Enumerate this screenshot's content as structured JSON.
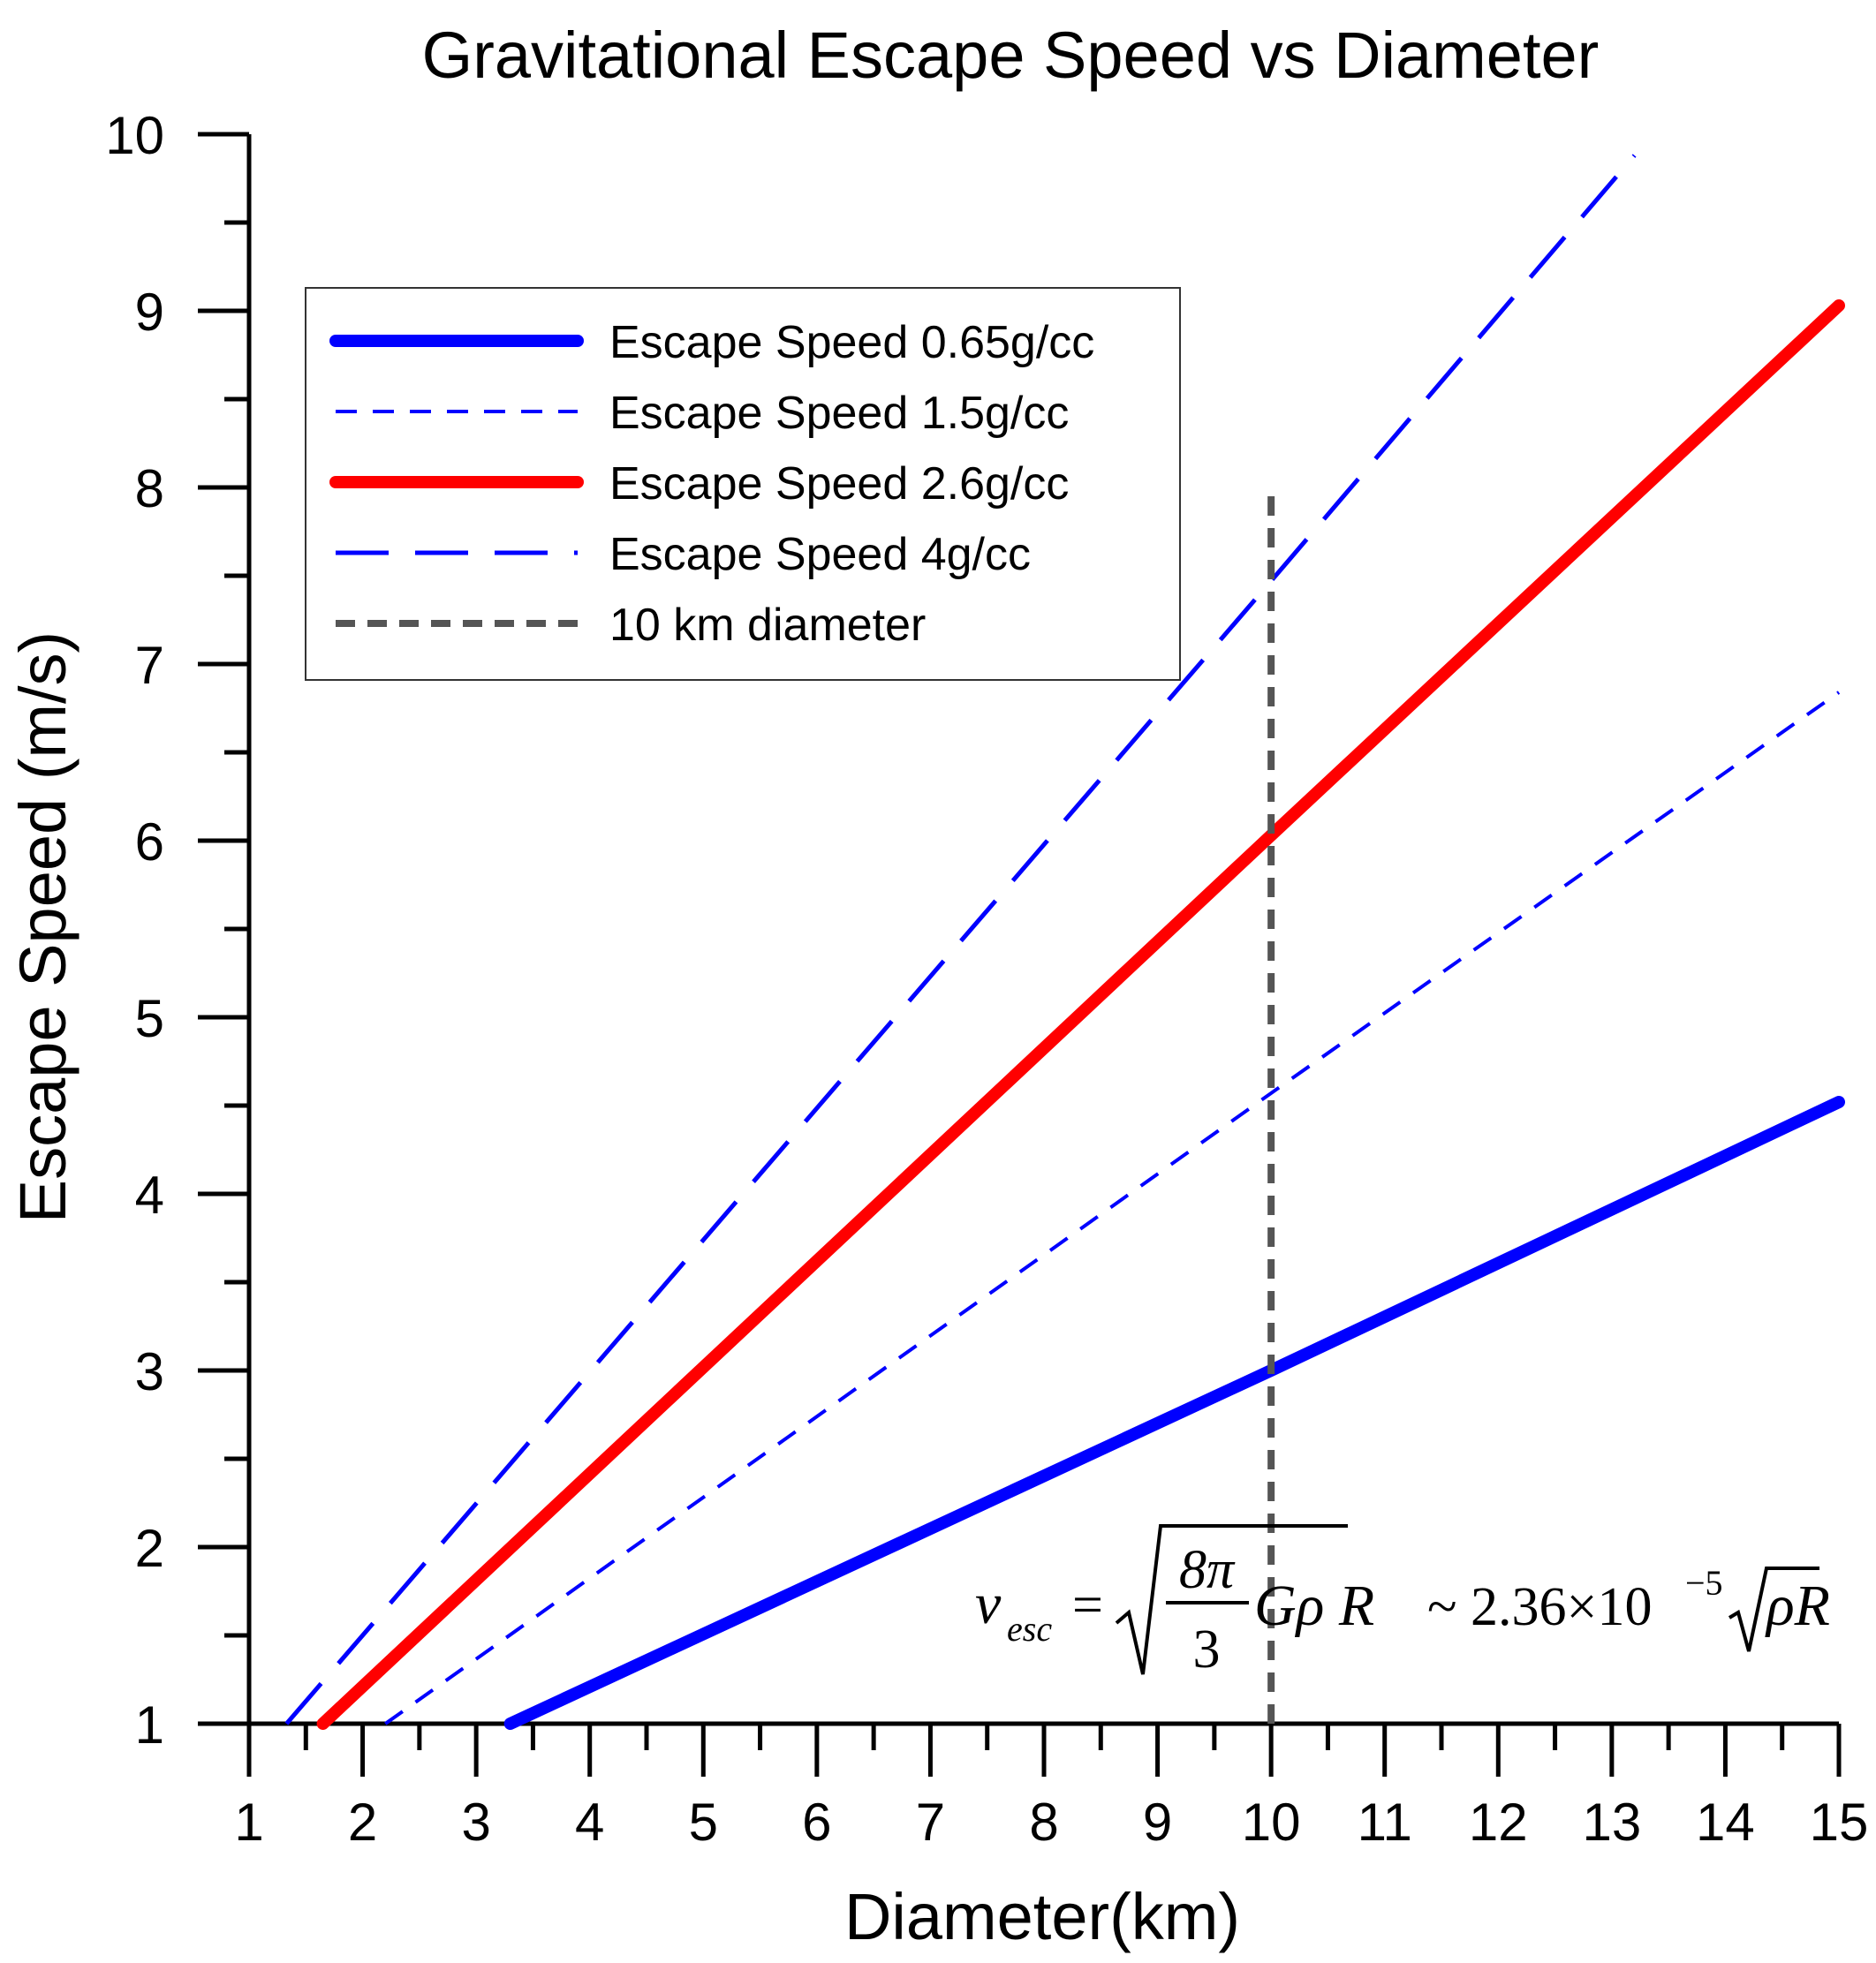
{
  "chart_data": {
    "type": "line",
    "title": "Gravitational Escape Speed vs Diameter",
    "xlabel": "Diameter(km)",
    "ylabel": "Escape Speed (m/s)",
    "xlim": [
      1,
      15
    ],
    "ylim": [
      1,
      10
    ],
    "xticks": [
      "1",
      "2",
      "3",
      "4",
      "5",
      "6",
      "7",
      "8",
      "9",
      "10",
      "11",
      "12",
      "13",
      "14",
      "15"
    ],
    "yticks": [
      "1",
      "2",
      "3",
      "4",
      "5",
      "6",
      "7",
      "8",
      "9",
      "10"
    ],
    "grid": false,
    "legend_position": "top-left",
    "series": [
      {
        "name": "Escape Speed 0.65g/cc",
        "color": "#0000ff",
        "style": "solid-thick",
        "x": [
          3.3,
          10,
          15
        ],
        "y": [
          1.0,
          3.0,
          4.52
        ]
      },
      {
        "name": "Escape Speed 1.5g/cc",
        "color": "#0000ff",
        "style": "short-dash",
        "x": [
          2.2,
          10,
          15
        ],
        "y": [
          1.0,
          4.57,
          6.84
        ]
      },
      {
        "name": "Escape Speed 2.6g/cc",
        "color": "#ff0000",
        "style": "solid-thick",
        "x": [
          1.65,
          10,
          15
        ],
        "y": [
          1.0,
          6.03,
          9.03
        ]
      },
      {
        "name": "Escape Speed 4g/cc",
        "color": "#0000ff",
        "style": "long-dash",
        "x": [
          1.33,
          10,
          13.2
        ],
        "y": [
          1.0,
          7.47,
          9.88
        ]
      }
    ],
    "reference_line": {
      "name": "10 km diameter",
      "color": "#555555",
      "style": "dashed",
      "x": 10,
      "y_range": [
        1,
        8
      ]
    },
    "annotation": {
      "v": "v",
      "esc": "esc",
      "equals": "=",
      "frac_num": "8π",
      "frac_den": "3",
      "g_rho_r": "Gρ R",
      "approx": "~ 2.36×10",
      "exponent": "−5",
      "rho_r": "ρR"
    }
  }
}
